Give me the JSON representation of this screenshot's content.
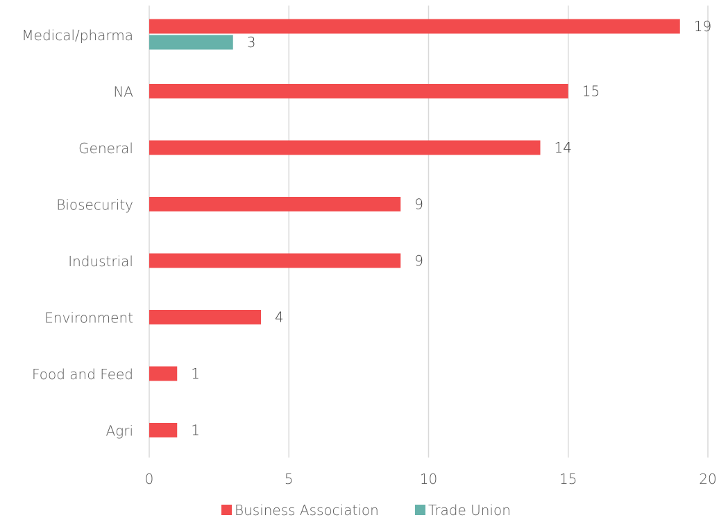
{
  "chart_data": {
    "type": "bar",
    "orientation": "horizontal",
    "categories": [
      "Medical/pharma",
      "NA",
      "General",
      "Biosecurity",
      "Industrial",
      "Environment",
      "Food and Feed",
      "Agri"
    ],
    "series": [
      {
        "name": "Business Association",
        "color": "#f24b4d",
        "values": [
          19,
          15,
          14,
          9,
          9,
          4,
          1,
          1
        ]
      },
      {
        "name": "Trade Union",
        "color": "#66b2aa",
        "values": [
          3,
          null,
          null,
          null,
          null,
          null,
          null,
          null
        ]
      }
    ],
    "xlim": [
      0,
      20
    ],
    "xticks": [
      0,
      5,
      10,
      15,
      20
    ],
    "grid": true,
    "legend_position": "bottom"
  }
}
